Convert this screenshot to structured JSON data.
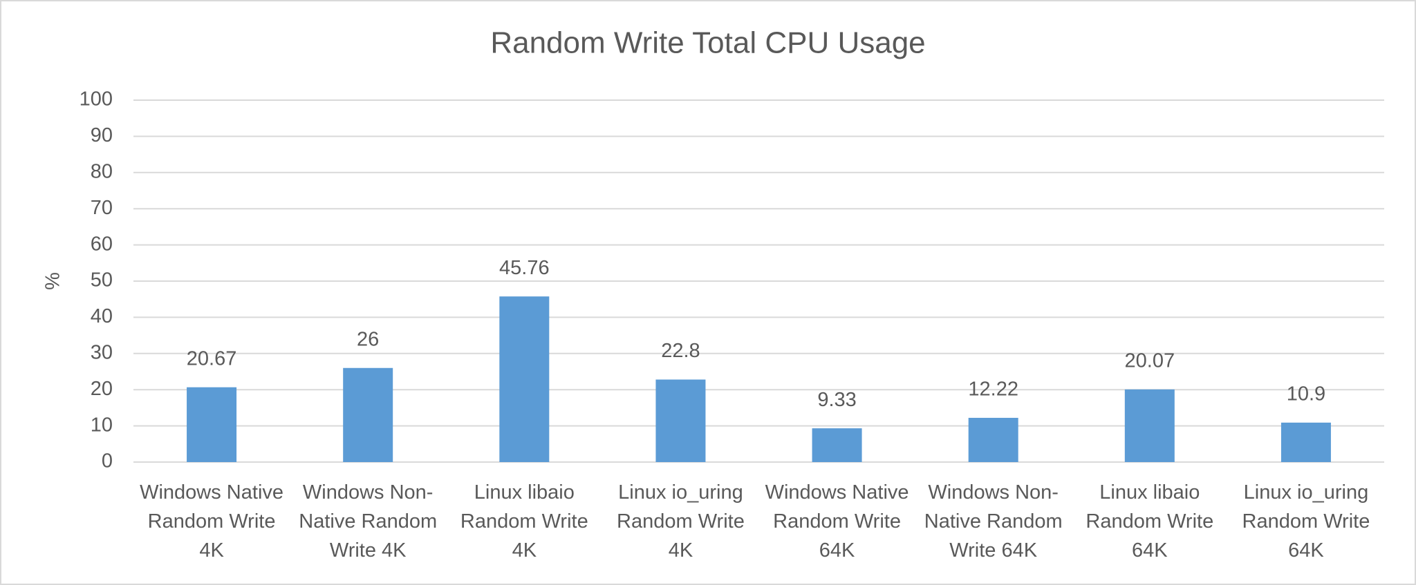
{
  "chart_data": {
    "type": "bar",
    "title": "Random Write Total CPU Usage",
    "y_label": "%",
    "categories": [
      "Windows Native Random Write 4K",
      "Windows Non-Native Random Write 4K",
      "Linux libaio Random Write 4K",
      "Linux io_uring Random Write 4K",
      "Windows Native Random Write 64K",
      "Windows Non-Native Random Write 64K",
      "Linux libaio Random Write 64K",
      "Linux io_uring Random Write 64K"
    ],
    "values": [
      20.67,
      26,
      45.76,
      22.8,
      9.33,
      12.22,
      20.07,
      10.9
    ],
    "color": "#5b9bd5",
    "ylim": [
      0,
      100
    ],
    "yticks": [
      0,
      10,
      20,
      30,
      40,
      50,
      60,
      70,
      80,
      90,
      100
    ],
    "grid": true
  }
}
